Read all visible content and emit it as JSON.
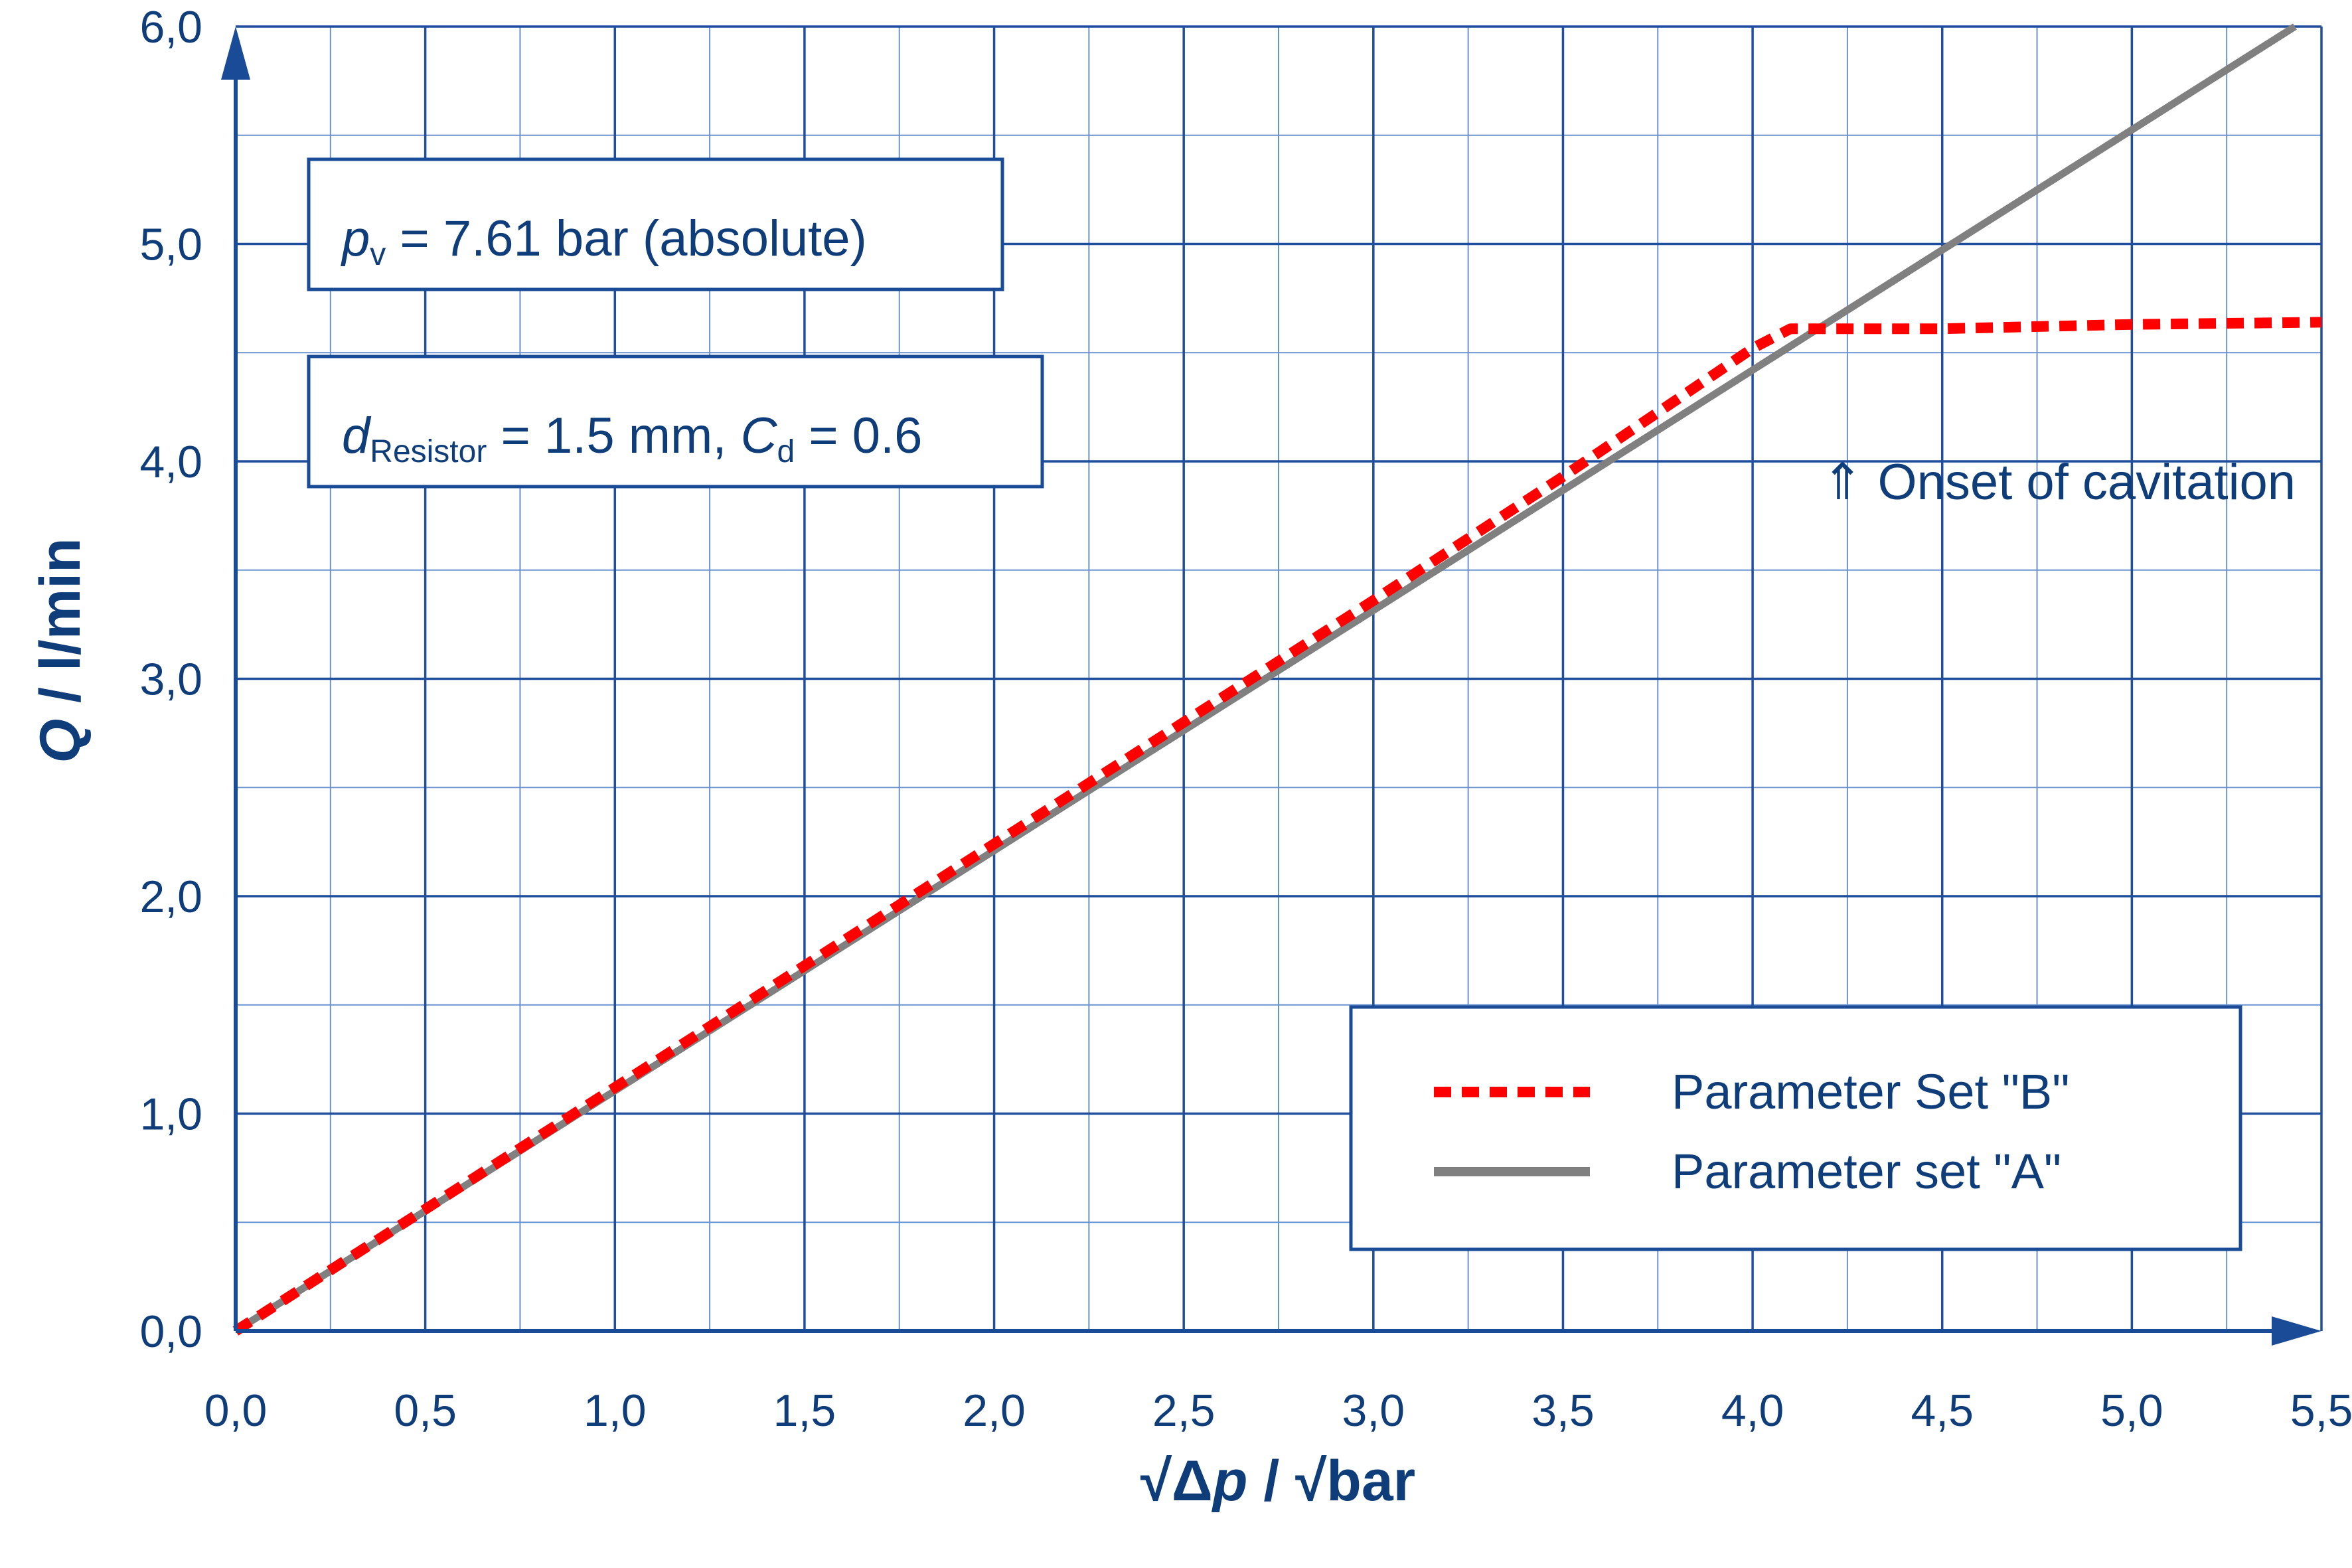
{
  "chart_data": {
    "type": "line",
    "xlabel_parts": [
      "√Δ",
      "p",
      " / √bar"
    ],
    "ylabel_parts": [
      "Q",
      " / l/min"
    ],
    "xlim": [
      0,
      5.5
    ],
    "ylim": [
      0,
      6
    ],
    "x_ticks": [
      "0,0",
      "0,5",
      "1,0",
      "1,5",
      "2,0",
      "2,5",
      "3,0",
      "3,5",
      "4,0",
      "4,5",
      "5,0",
      "5,5"
    ],
    "y_ticks": [
      "0,0",
      "1,0",
      "2,0",
      "3,0",
      "4,0",
      "5,0",
      "6,0"
    ],
    "x_tick_values": [
      0,
      0.5,
      1.0,
      1.5,
      2.0,
      2.5,
      3.0,
      3.5,
      4.0,
      4.5,
      5.0,
      5.5
    ],
    "y_tick_values": [
      0,
      1,
      2,
      3,
      4,
      5,
      6
    ],
    "grid": true,
    "series": [
      {
        "name": "Parameter set \"A\"",
        "color": "#808080",
        "style": "solid",
        "x": [
          0,
          5.43
        ],
        "y": [
          0,
          6.0
        ]
      },
      {
        "name": "Parameter Set \"B\"",
        "color": "#ff0000",
        "style": "dashed",
        "x": [
          0,
          1.0,
          2.0,
          3.0,
          3.5,
          4.0,
          4.1,
          4.5,
          5.0,
          5.5
        ],
        "y": [
          0,
          1.12,
          2.24,
          3.36,
          3.93,
          4.52,
          4.61,
          4.61,
          4.63,
          4.64
        ]
      }
    ],
    "legend_position": "lower-right",
    "annotations": {
      "pv": {
        "sym": "p",
        "sub": "v",
        "text": " = 7.61 bar (absolute)"
      },
      "resistor": {
        "d_sym": "d",
        "d_sub": "Resistor",
        "d_text": " = 1.5 mm, ",
        "c_sym": "C",
        "c_sub": "d",
        "c_text": " = 0.6"
      },
      "cavitation": "⇑ Onset of cavitation"
    }
  },
  "colors": {
    "axis": "#1a4b97",
    "text": "#0f3d7a",
    "grid_major": "#1f4e9c",
    "grid_minor": "#6b93cf"
  }
}
